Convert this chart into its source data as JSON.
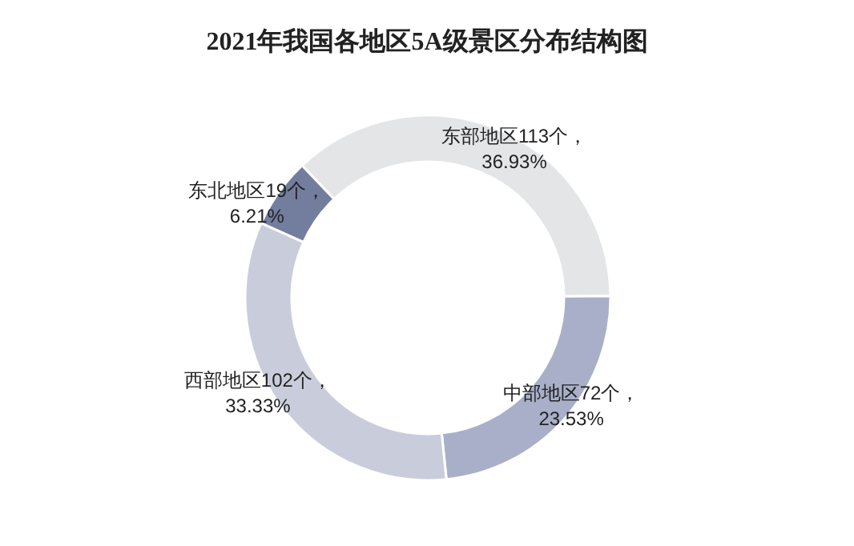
{
  "chart_data": {
    "type": "donut",
    "title": "2021年我国各地区5A级景区分布结构图",
    "categories": [
      "东部地区",
      "中部地区",
      "西部地区",
      "东北地区"
    ],
    "values": [
      113,
      72,
      102,
      19
    ],
    "value_labels": [
      "113个，36.93%",
      "72个，23.53%",
      "102个，33.33%",
      "19个，6.21%"
    ],
    "colors": [
      "#e3e5e6",
      "#a9afc8",
      "#c9cddb",
      "#737d9e"
    ]
  }
}
